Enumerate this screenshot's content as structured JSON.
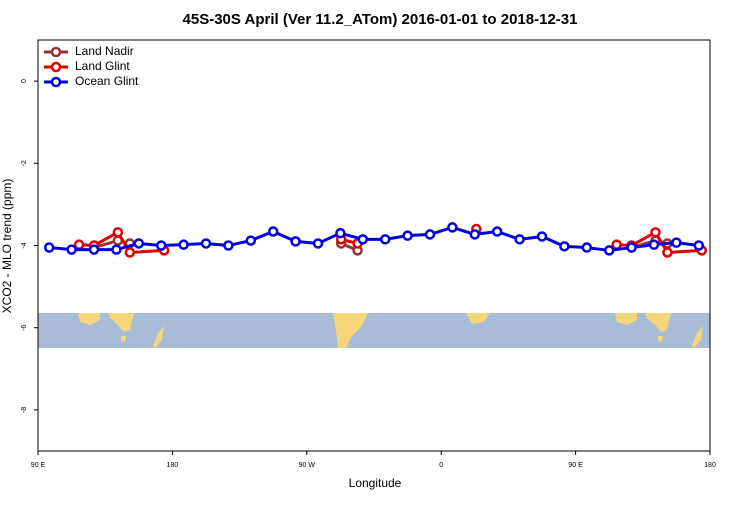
{
  "chart_data": {
    "type": "line",
    "title": "45S-30S April (Ver 11.2_ATom)   2016-01-01 to 2018-12-31",
    "x_label": "Longitude",
    "y_label": "XCO2 - MLO trend (ppm)",
    "xlim": [
      90,
      540
    ],
    "ylim": [
      -9,
      1
    ],
    "xticks": [
      {
        "value": 90,
        "label": "90 E"
      },
      180,
      {
        "value": 270,
        "label": "90 W"
      },
      {
        "value": 360,
        "label": "0"
      },
      {
        "value": 450,
        "label": "90 E"
      },
      {
        "value": 540,
        "label": "180"
      }
    ],
    "yticks": [
      0,
      -2,
      -4,
      -6,
      -8
    ],
    "legend": "top-left",
    "series": [
      {
        "name": "Land Nadir",
        "color": "#993333",
        "x": [
          127.5,
          143.5,
          151.5,
          null,
          293,
          304,
          null,
          487.5,
          503.5,
          511.5
        ],
        "values": [
          -4.05,
          -3.88,
          -3.95,
          null,
          -3.95,
          -4.12,
          null,
          -4.05,
          -3.88,
          -3.95
        ]
      },
      {
        "name": "Land Glint",
        "color": "#e00000",
        "x": [
          117.5,
          127.5,
          143.5,
          151.5,
          174.5,
          null,
          293,
          304,
          null,
          383.5,
          null,
          477.5,
          487.5,
          503.5,
          511.5,
          534.5
        ],
        "values": [
          -3.98,
          -4.0,
          -3.68,
          -4.17,
          -4.12,
          null,
          -3.85,
          -3.95,
          null,
          -3.6,
          null,
          -3.98,
          -4.0,
          -3.68,
          -4.17,
          -4.12
        ]
      },
      {
        "name": "Ocean Glint",
        "color": "#0000e0",
        "x": [
          97.5,
          112.5,
          127.5,
          142.5,
          157.5,
          172.5,
          187.5,
          202.5,
          217.5,
          232.5,
          247.5,
          262.5,
          277.5,
          292.5,
          307.5,
          322.5,
          337.5,
          352.5,
          367.5,
          382.5,
          397.5,
          412.5,
          427.5,
          442.5,
          457.5,
          472.5,
          487.5,
          502.5,
          517.5,
          532.5
        ],
        "values": [
          -4.05,
          -4.1,
          -4.1,
          -4.1,
          -3.95,
          -4.0,
          -3.98,
          -3.95,
          -4.0,
          -3.88,
          -3.66,
          -3.9,
          -3.95,
          -3.7,
          -3.85,
          -3.85,
          -3.76,
          -3.73,
          -3.56,
          -3.73,
          -3.66,
          -3.85,
          -3.78,
          -4.02,
          -4.05,
          -4.12,
          -4.05,
          -3.98,
          -3.93,
          -4.0
        ]
      }
    ]
  }
}
